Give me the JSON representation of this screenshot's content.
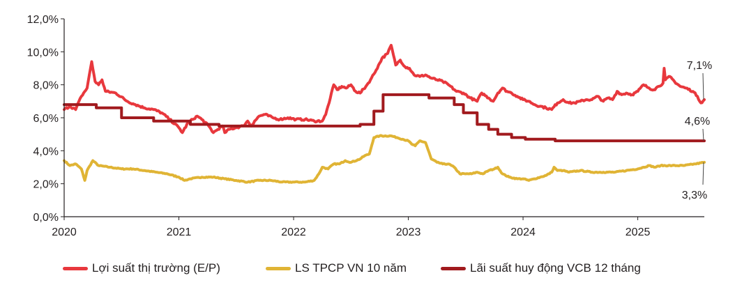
{
  "chart_data": {
    "type": "line",
    "title": "",
    "xlabel": "",
    "ylabel": "",
    "x_range": [
      2020.0,
      2025.58
    ],
    "ylim": [
      0,
      12
    ],
    "y_ticks": [
      "0,0%",
      "2,0%",
      "4,0%",
      "6,0%",
      "8,0%",
      "10,0%",
      "12,0%"
    ],
    "x_ticks": [
      "2020",
      "2021",
      "2022",
      "2023",
      "2024",
      "2025"
    ],
    "grid": false,
    "legend_position": "bottom",
    "series": [
      {
        "name": "Lợi suất thị trường (E/P)",
        "color": "#e8383d",
        "noise": 0.12,
        "points": [
          [
            2020.0,
            6.5
          ],
          [
            2020.05,
            6.7
          ],
          [
            2020.1,
            6.5
          ],
          [
            2020.15,
            7.3
          ],
          [
            2020.2,
            7.8
          ],
          [
            2020.24,
            9.4
          ],
          [
            2020.27,
            8.2
          ],
          [
            2020.3,
            8.0
          ],
          [
            2020.33,
            8.3
          ],
          [
            2020.36,
            7.6
          ],
          [
            2020.45,
            7.5
          ],
          [
            2020.55,
            7.0
          ],
          [
            2020.62,
            6.8
          ],
          [
            2020.7,
            6.6
          ],
          [
            2020.78,
            6.5
          ],
          [
            2020.85,
            6.3
          ],
          [
            2020.92,
            5.9
          ],
          [
            2021.0,
            5.4
          ],
          [
            2021.03,
            5.1
          ],
          [
            2021.08,
            5.7
          ],
          [
            2021.12,
            5.9
          ],
          [
            2021.16,
            6.1
          ],
          [
            2021.2,
            5.9
          ],
          [
            2021.26,
            5.5
          ],
          [
            2021.3,
            5.1
          ],
          [
            2021.34,
            5.3
          ],
          [
            2021.38,
            5.5
          ],
          [
            2021.4,
            5.1
          ],
          [
            2021.44,
            5.3
          ],
          [
            2021.5,
            5.4
          ],
          [
            2021.56,
            5.5
          ],
          [
            2021.6,
            5.8
          ],
          [
            2021.63,
            5.5
          ],
          [
            2021.66,
            5.8
          ],
          [
            2021.7,
            6.1
          ],
          [
            2021.75,
            6.2
          ],
          [
            2021.82,
            6.0
          ],
          [
            2021.88,
            5.9
          ],
          [
            2021.95,
            6.0
          ],
          [
            2022.02,
            5.9
          ],
          [
            2022.1,
            5.9
          ],
          [
            2022.18,
            5.8
          ],
          [
            2022.25,
            5.8
          ],
          [
            2022.28,
            6.2
          ],
          [
            2022.32,
            7.2
          ],
          [
            2022.35,
            8.0
          ],
          [
            2022.38,
            7.7
          ],
          [
            2022.42,
            7.9
          ],
          [
            2022.46,
            7.8
          ],
          [
            2022.5,
            8.0
          ],
          [
            2022.54,
            7.6
          ],
          [
            2022.58,
            7.5
          ],
          [
            2022.63,
            7.9
          ],
          [
            2022.67,
            8.3
          ],
          [
            2022.72,
            8.9
          ],
          [
            2022.77,
            9.6
          ],
          [
            2022.82,
            9.9
          ],
          [
            2022.85,
            10.4
          ],
          [
            2022.87,
            9.8
          ],
          [
            2022.89,
            9.2
          ],
          [
            2022.93,
            9.5
          ],
          [
            2022.97,
            9.1
          ],
          [
            2023.01,
            9.0
          ],
          [
            2023.05,
            8.6
          ],
          [
            2023.1,
            8.5
          ],
          [
            2023.15,
            8.6
          ],
          [
            2023.2,
            8.4
          ],
          [
            2023.25,
            8.3
          ],
          [
            2023.3,
            8.2
          ],
          [
            2023.35,
            8.0
          ],
          [
            2023.42,
            7.6
          ],
          [
            2023.48,
            7.5
          ],
          [
            2023.54,
            7.2
          ],
          [
            2023.6,
            7.0
          ],
          [
            2023.64,
            7.5
          ],
          [
            2023.7,
            7.2
          ],
          [
            2023.74,
            7.0
          ],
          [
            2023.78,
            7.5
          ],
          [
            2023.82,
            7.8
          ],
          [
            2023.86,
            7.6
          ],
          [
            2023.9,
            7.5
          ],
          [
            2023.95,
            7.3
          ],
          [
            2024.0,
            7.1
          ],
          [
            2024.05,
            7.0
          ],
          [
            2024.1,
            6.8
          ],
          [
            2024.15,
            6.7
          ],
          [
            2024.2,
            6.6
          ],
          [
            2024.25,
            6.5
          ],
          [
            2024.3,
            6.9
          ],
          [
            2024.35,
            7.1
          ],
          [
            2024.4,
            6.9
          ],
          [
            2024.45,
            6.9
          ],
          [
            2024.5,
            7.0
          ],
          [
            2024.55,
            7.1
          ],
          [
            2024.6,
            7.1
          ],
          [
            2024.65,
            7.3
          ],
          [
            2024.7,
            7.0
          ],
          [
            2024.74,
            7.2
          ],
          [
            2024.78,
            7.1
          ],
          [
            2024.82,
            7.6
          ],
          [
            2024.86,
            7.4
          ],
          [
            2024.9,
            7.5
          ],
          [
            2024.95,
            7.4
          ],
          [
            2025.0,
            7.6
          ],
          [
            2025.05,
            8.0
          ],
          [
            2025.1,
            7.8
          ],
          [
            2025.14,
            7.7
          ],
          [
            2025.18,
            7.9
          ],
          [
            2025.22,
            8.1
          ],
          [
            2025.23,
            9.0
          ],
          [
            2025.24,
            8.3
          ],
          [
            2025.28,
            8.5
          ],
          [
            2025.32,
            8.2
          ],
          [
            2025.37,
            7.9
          ],
          [
            2025.42,
            7.8
          ],
          [
            2025.48,
            7.6
          ],
          [
            2025.52,
            7.3
          ],
          [
            2025.55,
            6.9
          ],
          [
            2025.58,
            7.1
          ]
        ]
      },
      {
        "name": "LS TPCP VN 10 năm",
        "color": "#e0b435",
        "noise": 0.06,
        "points": [
          [
            2020.0,
            3.4
          ],
          [
            2020.05,
            3.1
          ],
          [
            2020.1,
            3.2
          ],
          [
            2020.15,
            2.9
          ],
          [
            2020.18,
            2.2
          ],
          [
            2020.2,
            2.8
          ],
          [
            2020.25,
            3.4
          ],
          [
            2020.3,
            3.1
          ],
          [
            2020.4,
            3.0
          ],
          [
            2020.5,
            2.9
          ],
          [
            2020.6,
            2.9
          ],
          [
            2020.7,
            2.8
          ],
          [
            2020.8,
            2.7
          ],
          [
            2020.9,
            2.6
          ],
          [
            2021.0,
            2.4
          ],
          [
            2021.05,
            2.2
          ],
          [
            2021.1,
            2.3
          ],
          [
            2021.2,
            2.4
          ],
          [
            2021.3,
            2.4
          ],
          [
            2021.4,
            2.3
          ],
          [
            2021.5,
            2.2
          ],
          [
            2021.6,
            2.1
          ],
          [
            2021.7,
            2.2
          ],
          [
            2021.8,
            2.2
          ],
          [
            2021.9,
            2.1
          ],
          [
            2022.0,
            2.1
          ],
          [
            2022.1,
            2.1
          ],
          [
            2022.18,
            2.2
          ],
          [
            2022.22,
            2.6
          ],
          [
            2022.25,
            3.0
          ],
          [
            2022.3,
            2.9
          ],
          [
            2022.35,
            3.2
          ],
          [
            2022.4,
            3.2
          ],
          [
            2022.45,
            3.4
          ],
          [
            2022.5,
            3.3
          ],
          [
            2022.58,
            3.5
          ],
          [
            2022.62,
            3.7
          ],
          [
            2022.66,
            3.8
          ],
          [
            2022.68,
            4.3
          ],
          [
            2022.7,
            4.8
          ],
          [
            2022.75,
            4.9
          ],
          [
            2022.85,
            4.9
          ],
          [
            2022.9,
            4.8
          ],
          [
            2022.95,
            4.7
          ],
          [
            2023.0,
            4.6
          ],
          [
            2023.03,
            4.4
          ],
          [
            2023.06,
            4.3
          ],
          [
            2023.1,
            4.6
          ],
          [
            2023.15,
            4.5
          ],
          [
            2023.2,
            3.5
          ],
          [
            2023.25,
            3.3
          ],
          [
            2023.3,
            3.2
          ],
          [
            2023.35,
            3.2
          ],
          [
            2023.4,
            3.0
          ],
          [
            2023.45,
            2.6
          ],
          [
            2023.5,
            2.6
          ],
          [
            2023.55,
            2.6
          ],
          [
            2023.6,
            2.7
          ],
          [
            2023.65,
            2.6
          ],
          [
            2023.7,
            2.8
          ],
          [
            2023.75,
            2.9
          ],
          [
            2023.78,
            3.0
          ],
          [
            2023.82,
            2.6
          ],
          [
            2023.88,
            2.4
          ],
          [
            2023.95,
            2.3
          ],
          [
            2024.0,
            2.3
          ],
          [
            2024.05,
            2.2
          ],
          [
            2024.1,
            2.3
          ],
          [
            2024.15,
            2.4
          ],
          [
            2024.2,
            2.5
          ],
          [
            2024.25,
            2.7
          ],
          [
            2024.27,
            3.0
          ],
          [
            2024.3,
            2.8
          ],
          [
            2024.35,
            2.8
          ],
          [
            2024.4,
            2.7
          ],
          [
            2024.5,
            2.8
          ],
          [
            2024.6,
            2.7
          ],
          [
            2024.7,
            2.7
          ],
          [
            2024.8,
            2.7
          ],
          [
            2024.9,
            2.8
          ],
          [
            2025.0,
            2.9
          ],
          [
            2025.05,
            3.0
          ],
          [
            2025.1,
            3.1
          ],
          [
            2025.15,
            3.0
          ],
          [
            2025.2,
            3.1
          ],
          [
            2025.3,
            3.1
          ],
          [
            2025.4,
            3.1
          ],
          [
            2025.5,
            3.2
          ],
          [
            2025.58,
            3.3
          ]
        ]
      },
      {
        "name": "Lãi suất huy động VCB 12 tháng",
        "color": "#a11a1e",
        "step": true,
        "points": [
          [
            2020.0,
            6.8
          ],
          [
            2020.28,
            6.6
          ],
          [
            2020.5,
            6.0
          ],
          [
            2020.78,
            5.8
          ],
          [
            2021.1,
            5.6
          ],
          [
            2021.35,
            5.5
          ],
          [
            2022.58,
            5.6
          ],
          [
            2022.7,
            6.4
          ],
          [
            2022.78,
            7.4
          ],
          [
            2023.18,
            7.2
          ],
          [
            2023.4,
            6.8
          ],
          [
            2023.48,
            6.3
          ],
          [
            2023.6,
            5.6
          ],
          [
            2023.7,
            5.3
          ],
          [
            2023.78,
            5.0
          ],
          [
            2023.9,
            4.8
          ],
          [
            2024.02,
            4.7
          ],
          [
            2024.28,
            4.6
          ],
          [
            2025.58,
            4.6
          ]
        ]
      }
    ],
    "annotations": [
      "7,1%",
      "4,6%",
      "3,3%"
    ]
  },
  "legend": {
    "items": [
      {
        "label": "Lợi suất thị trường (E/P)",
        "color": "#e8383d"
      },
      {
        "label": "LS TPCP VN 10 năm",
        "color": "#e0b435"
      },
      {
        "label": "Lãi suất huy động VCB 12 tháng",
        "color": "#a11a1e"
      }
    ]
  }
}
